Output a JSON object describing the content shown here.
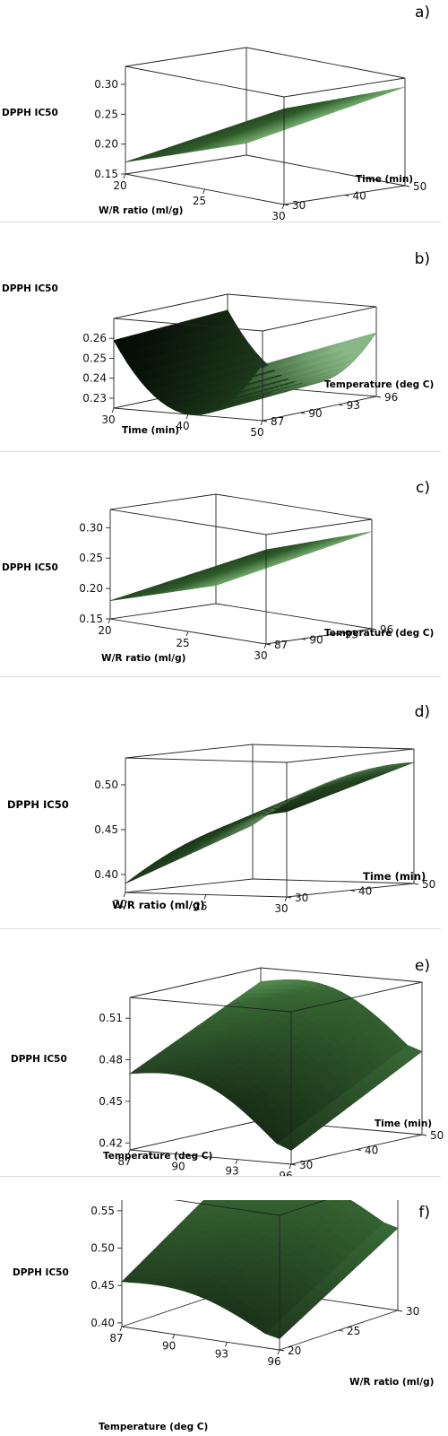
{
  "chart_data": [
    {
      "panel": "a)",
      "type": "surface",
      "zlabel": "DPPH IC50",
      "xlabel": "W/R ratio (ml/g)",
      "ylabel": "Time (min)",
      "x_ticks": [
        "20",
        "25",
        "30"
      ],
      "y_ticks": [
        "30",
        "40",
        "50"
      ],
      "z_ticks": [
        "0.15",
        "0.20",
        "0.25",
        "0.30"
      ],
      "xlim": [
        20,
        30
      ],
      "ylim": [
        30,
        50
      ],
      "zlim": [
        0.15,
        0.33
      ],
      "corners": {
        "x_low_y_low": 0.17,
        "x_high_y_low": 0.31,
        "x_low_y_high": 0.17,
        "x_high_y_high": 0.315
      },
      "shape": "plane",
      "color": "#3f7a3a"
    },
    {
      "panel": "b)",
      "type": "surface",
      "zlabel": "DPPH IC50",
      "xlabel": "Time (min)",
      "ylabel": "Temperature (deg C)",
      "x_ticks": [
        "30",
        "40",
        "50"
      ],
      "y_ticks": [
        "87",
        "90",
        "93",
        "96"
      ],
      "z_ticks": [
        "0.23",
        "0.24",
        "0.25",
        "0.26"
      ],
      "xlim": [
        30,
        50
      ],
      "ylim": [
        87,
        96
      ],
      "zlim": [
        0.225,
        0.27
      ],
      "corners": {
        "x_low_y_low": 0.262,
        "x_high_y_low": 0.256,
        "x_low_y_high": 0.262,
        "x_high_y_high": 0.257
      },
      "shape": "valley",
      "min_value": 0.228,
      "color": "#2f5d2c"
    },
    {
      "panel": "c)",
      "type": "surface",
      "zlabel": "DPPH IC50",
      "xlabel": "W/R ratio (ml/g)",
      "ylabel": "Temperature (deg C)",
      "x_ticks": [
        "20",
        "25",
        "30"
      ],
      "y_ticks": [
        "87",
        "90",
        "93",
        "96"
      ],
      "z_ticks": [
        "0.15",
        "0.20",
        "0.25",
        "0.30"
      ],
      "xlim": [
        20,
        30
      ],
      "ylim": [
        87,
        96
      ],
      "zlim": [
        0.15,
        0.33
      ],
      "corners": {
        "x_low_y_low": 0.18,
        "x_high_y_low": 0.305,
        "x_low_y_high": 0.18,
        "x_high_y_high": 0.31
      },
      "shape": "plane",
      "color": "#3f7a3a"
    },
    {
      "panel": "d)",
      "type": "surface",
      "zlabel": "DPPH IC50",
      "xlabel": "W/R ratio (ml/g)",
      "ylabel": "Time (min)",
      "x_ticks": [
        "20",
        "25",
        "30"
      ],
      "y_ticks": [
        "30",
        "40",
        "50"
      ],
      "z_ticks": [
        "0.40",
        "0.45",
        "0.50"
      ],
      "xlim": [
        20,
        30
      ],
      "ylim": [
        30,
        50
      ],
      "zlim": [
        0.38,
        0.53
      ],
      "corners": {
        "x_low_y_low": 0.39,
        "x_high_y_low": 0.475,
        "x_low_y_high": 0.44,
        "x_high_y_high": 0.515
      },
      "shape": "convex",
      "color": "#2f5d2c"
    },
    {
      "panel": "e)",
      "type": "surface",
      "zlabel": "DPPH IC50",
      "xlabel": "Temperature (deg C)",
      "ylabel": "Time (min)",
      "x_ticks": [
        "87",
        "90",
        "93",
        "96"
      ],
      "y_ticks": [
        "30",
        "40",
        "50"
      ],
      "z_ticks": [
        "0.42",
        "0.45",
        "0.48",
        "0.51"
      ],
      "xlim": [
        87,
        96
      ],
      "ylim": [
        30,
        50
      ],
      "zlim": [
        0.415,
        0.525
      ],
      "corners": {
        "x_low_y_low": 0.47,
        "x_high_y_low": 0.425,
        "x_low_y_high": 0.515,
        "x_high_y_high": 0.475
      },
      "shape": "ridge",
      "color": "#4a8a45"
    },
    {
      "panel": "f)",
      "type": "surface",
      "zlabel": "DPPH IC50",
      "xlabel": "Temperature (deg C)",
      "ylabel": "W/R ratio (ml/g)",
      "x_ticks": [
        "87",
        "90",
        "93",
        "96"
      ],
      "y_ticks": [
        "20",
        "25",
        "30"
      ],
      "z_ticks": [
        "0.40",
        "0.45",
        "0.50",
        "0.55"
      ],
      "xlim": [
        87,
        96
      ],
      "ylim": [
        20,
        30
      ],
      "zlim": [
        0.395,
        0.575
      ],
      "corners": {
        "x_low_y_low": 0.455,
        "x_high_y_low": 0.41,
        "x_low_y_high": 0.56,
        "x_high_y_high": 0.505
      },
      "shape": "ridge",
      "color": "#4a8a45"
    }
  ]
}
